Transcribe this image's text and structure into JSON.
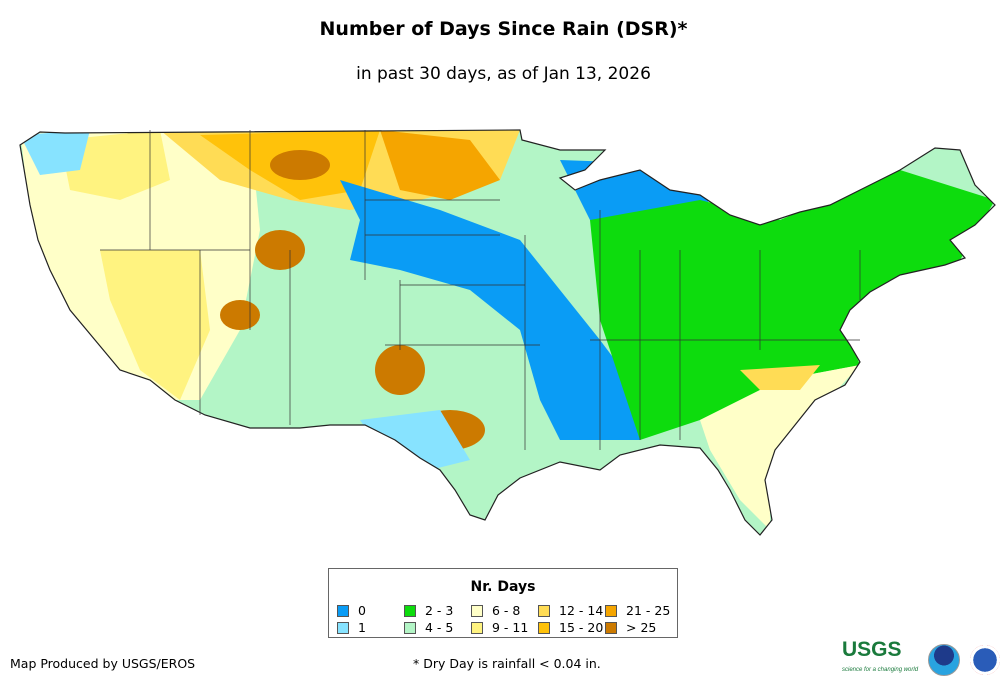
{
  "title": "Number of Days Since Rain (DSR)*",
  "subtitle": "in past 30 days, as of Jan 13, 2026",
  "legend": {
    "title": "Nr. Days",
    "items": [
      {
        "label": "0",
        "color": "#0a9cf5"
      },
      {
        "label": "1",
        "color": "#87e3ff"
      },
      {
        "label": "2 - 3",
        "color": "#0ddc0d"
      },
      {
        "label": "4 - 5",
        "color": "#b3f5c6"
      },
      {
        "label": "6 - 8",
        "color": "#ffffc8"
      },
      {
        "label": "9 - 11",
        "color": "#fff380"
      },
      {
        "label": "12 - 14",
        "color": "#ffdc55"
      },
      {
        "label": "15 - 20",
        "color": "#ffc20a"
      },
      {
        "label": "21 - 25",
        "color": "#f5a500"
      },
      {
        "label": "> 25",
        "color": "#cc7a00"
      }
    ]
  },
  "credit": "Map Produced by USGS/EROS",
  "footnote": "* Dry Day is rainfall < 0.04 in.",
  "logos": {
    "usgs": "USGS",
    "usgs_tagline": "science for a changing world",
    "noaa": "NOAA",
    "nws": "National Weather Service"
  }
}
